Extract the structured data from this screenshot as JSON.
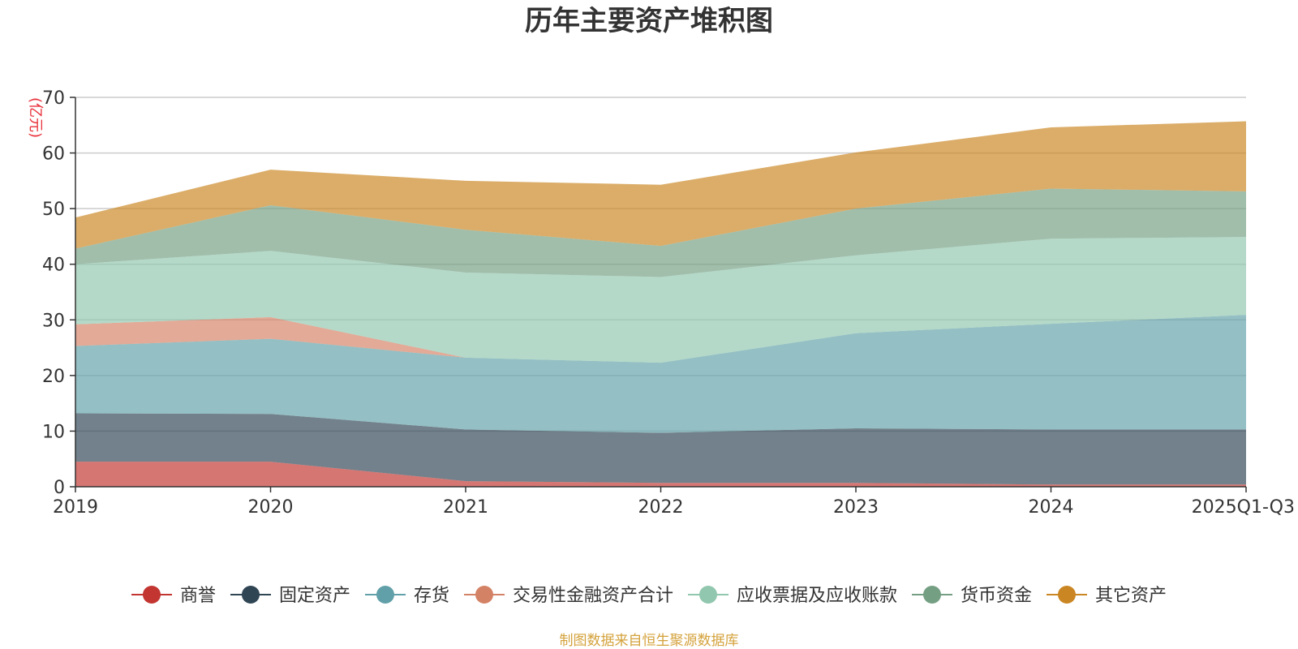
{
  "chart_data": {
    "type": "area",
    "stacked": true,
    "title": "历年主要资产堆积图",
    "ylabel": "(亿元)",
    "xlabel": "",
    "ylim": [
      0,
      70
    ],
    "yticks": [
      0,
      10,
      20,
      30,
      40,
      50,
      60,
      70
    ],
    "categories": [
      "2019",
      "2020",
      "2021",
      "2022",
      "2023",
      "2024",
      "2025Q1-Q3"
    ],
    "series": [
      {
        "name": "商誉",
        "color": "#c23531",
        "values": [
          4.5,
          4.5,
          1.0,
          0.7,
          0.7,
          0.4,
          0.4
        ]
      },
      {
        "name": "固定资产",
        "color": "#2f4554",
        "values": [
          8.7,
          8.6,
          9.3,
          9.0,
          9.8,
          9.9,
          9.9
        ]
      },
      {
        "name": "存货",
        "color": "#61a0a8",
        "values": [
          12.1,
          13.5,
          12.9,
          12.6,
          17.1,
          19.0,
          20.6
        ]
      },
      {
        "name": "交易性金融资产合计",
        "color": "#d48265",
        "values": [
          3.9,
          3.9,
          0,
          0,
          0,
          0,
          0
        ]
      },
      {
        "name": "应收票据及应收账款",
        "color": "#91c7ae",
        "values": [
          10.8,
          11.9,
          15.3,
          15.4,
          14.0,
          15.3,
          14.0
        ]
      },
      {
        "name": "货币资金",
        "color": "#749f83",
        "values": [
          2.8,
          8.2,
          7.7,
          5.6,
          8.4,
          9.0,
          8.2
        ]
      },
      {
        "name": "其它资产",
        "color": "#ca8622",
        "values": [
          5.6,
          6.4,
          8.8,
          11.0,
          10.1,
          11.0,
          12.6
        ]
      }
    ]
  },
  "footer": {
    "source": "制图数据来自恒生聚源数据库"
  }
}
